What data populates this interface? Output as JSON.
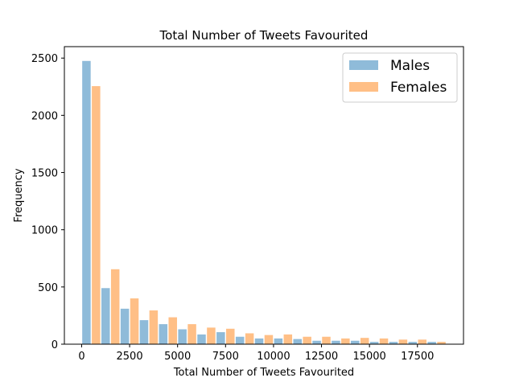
{
  "chart_data": {
    "type": "bar",
    "title": "Total Number of Tweets Favourited",
    "xlabel": "Total Number of Tweets Favourited",
    "ylabel": "Frequency",
    "xlim": [
      -900,
      19900
    ],
    "ylim": [
      0,
      2600
    ],
    "xticks": [
      0,
      2500,
      5000,
      7500,
      10000,
      12500,
      15000,
      17500
    ],
    "yticks": [
      0,
      500,
      1000,
      1500,
      2000,
      2500
    ],
    "bin_starts": [
      0,
      1000,
      2000,
      3000,
      4000,
      5000,
      6000,
      7000,
      8000,
      9000,
      10000,
      11000,
      12000,
      13000,
      14000,
      15000,
      16000,
      17000,
      18000
    ],
    "bin_width": 1000,
    "legend_position": "upper right",
    "grid": false,
    "series": [
      {
        "name": "Males",
        "color": "#1f77b4",
        "alpha": 0.5,
        "values": [
          2475,
          490,
          310,
          210,
          175,
          130,
          85,
          105,
          65,
          50,
          50,
          45,
          30,
          30,
          30,
          20,
          20,
          20,
          20
        ]
      },
      {
        "name": "Females",
        "color": "#ff7f0e",
        "alpha": 0.5,
        "values": [
          2255,
          655,
          400,
          295,
          235,
          175,
          145,
          135,
          95,
          80,
          85,
          65,
          65,
          50,
          55,
          50,
          40,
          40,
          20
        ]
      }
    ]
  }
}
